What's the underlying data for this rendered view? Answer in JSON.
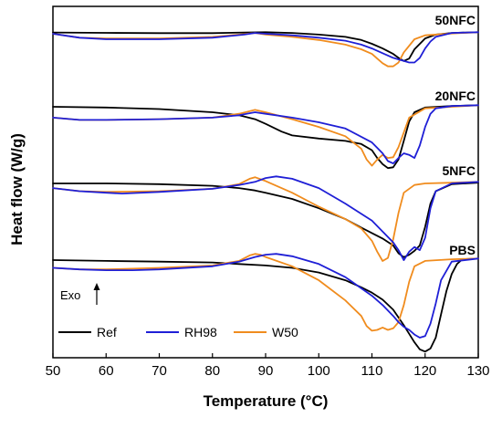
{
  "chart_data": {
    "type": "line",
    "xlabel": "Temperature (°C)",
    "ylabel": "Heat flow (W/g)",
    "xlim": [
      50,
      130
    ],
    "x_ticks": [
      50,
      60,
      70,
      80,
      90,
      100,
      110,
      120,
      130
    ],
    "y_ticks_shown": false,
    "annotation": "Exo",
    "legend": {
      "placement": "bottom-left",
      "entries": [
        {
          "name": "Ref",
          "color": "#000000"
        },
        {
          "name": "RH98",
          "color": "#1f1fd6"
        },
        {
          "name": "W50",
          "color": "#f08c1e"
        }
      ]
    },
    "group_note": "Vertically offset DSC curves; y values are relative heat-flow readings within each group",
    "groups": [
      {
        "label": "50NFC",
        "series": [
          {
            "name": "Ref",
            "x": [
              50,
              60,
              70,
              80,
              86,
              90,
              95,
              100,
              105,
              108,
              110,
              112,
              114,
              115,
              116,
              117,
              118,
              120,
              122,
              125,
              130
            ],
            "y": [
              0.08,
              0.06,
              0.04,
              0.04,
              0.08,
              0.1,
              0.05,
              -0.05,
              -0.2,
              -0.4,
              -0.65,
              -0.95,
              -1.3,
              -1.55,
              -1.75,
              -1.6,
              -1.0,
              -0.3,
              -0.05,
              0.05,
              0.1
            ]
          },
          {
            "name": "RH98",
            "x": [
              50,
              55,
              60,
              70,
              80,
              86,
              88,
              90,
              95,
              100,
              105,
              108,
              110,
              112,
              114,
              116,
              117,
              118,
              119,
              120,
              121,
              122,
              125,
              130
            ],
            "y": [
              0,
              -0.25,
              -0.35,
              -0.35,
              -0.25,
              -0.05,
              0.05,
              0.0,
              -0.1,
              -0.25,
              -0.45,
              -0.7,
              -0.95,
              -1.25,
              -1.55,
              -1.75,
              -1.85,
              -1.85,
              -1.55,
              -0.95,
              -0.5,
              -0.2,
              0.05,
              0.1
            ]
          },
          {
            "name": "W50",
            "x": [
              50,
              55,
              60,
              70,
              80,
              85,
              88,
              90,
              95,
              100,
              105,
              108,
              110,
              111,
              112,
              113,
              114,
              115,
              116,
              118,
              120,
              125,
              130
            ],
            "y": [
              0,
              -0.25,
              -0.3,
              -0.3,
              -0.2,
              -0.05,
              0.05,
              -0.05,
              -0.2,
              -0.4,
              -0.7,
              -1.0,
              -1.3,
              -1.6,
              -1.9,
              -2.1,
              -2.1,
              -1.85,
              -1.2,
              -0.35,
              -0.1,
              0.02,
              0.1
            ]
          }
        ]
      },
      {
        "label": "20NFC",
        "series": [
          {
            "name": "Ref",
            "x": [
              50,
              60,
              70,
              80,
              85,
              88,
              90,
              93,
              95,
              100,
              105,
              108,
              110,
              111,
              112,
              113,
              114,
              115,
              116,
              117,
              118,
              120,
              125,
              130
            ],
            "y": [
              0,
              -0.05,
              -0.15,
              -0.35,
              -0.55,
              -0.8,
              -1.1,
              -1.6,
              -1.85,
              -2.05,
              -2.2,
              -2.4,
              -2.8,
              -3.3,
              -3.7,
              -3.95,
              -3.9,
              -3.4,
              -2.2,
              -0.95,
              -0.35,
              -0.05,
              0.05,
              0.1
            ]
          },
          {
            "name": "RH98",
            "x": [
              50,
              55,
              60,
              70,
              80,
              85,
              88,
              90,
              95,
              100,
              105,
              110,
              112,
              113,
              114,
              115,
              116,
              117,
              118,
              119,
              120,
              121,
              122,
              125,
              130
            ],
            "y": [
              -0.7,
              -0.85,
              -0.85,
              -0.8,
              -0.7,
              -0.55,
              -0.35,
              -0.45,
              -0.7,
              -1.0,
              -1.4,
              -2.3,
              -3.0,
              -3.5,
              -3.65,
              -3.3,
              -3.0,
              -3.1,
              -3.3,
              -2.5,
              -1.3,
              -0.45,
              -0.1,
              0.05,
              0.1
            ]
          },
          {
            "name": "W50",
            "x": [
              50,
              55,
              60,
              70,
              80,
              85,
              88,
              90,
              95,
              100,
              105,
              108,
              109,
              110,
              111,
              112,
              113,
              114,
              115,
              117,
              120,
              125,
              130
            ],
            "y": [
              -0.7,
              -0.85,
              -0.85,
              -0.8,
              -0.7,
              -0.45,
              -0.2,
              -0.35,
              -0.8,
              -1.3,
              -1.9,
              -2.7,
              -3.4,
              -3.8,
              -3.4,
              -3.1,
              -3.3,
              -3.25,
              -2.6,
              -0.7,
              -0.1,
              0.0,
              0.1
            ]
          }
        ]
      },
      {
        "label": "5NFC",
        "series": [
          {
            "name": "Ref",
            "x": [
              50,
              60,
              70,
              80,
              85,
              88,
              90,
              95,
              100,
              105,
              108,
              110,
              112,
              114,
              115,
              116,
              117,
              118,
              119,
              120,
              121,
              122,
              125,
              130
            ],
            "y": [
              0,
              0,
              -0.05,
              -0.15,
              -0.3,
              -0.45,
              -0.6,
              -1.0,
              -1.6,
              -2.3,
              -2.85,
              -3.2,
              -3.55,
              -4.0,
              -4.5,
              -4.75,
              -4.6,
              -4.35,
              -4.0,
              -2.8,
              -1.3,
              -0.5,
              -0.05,
              0.05
            ]
          },
          {
            "name": "RH98",
            "x": [
              50,
              55,
              60,
              63,
              70,
              80,
              85,
              88,
              90,
              92,
              95,
              100,
              105,
              110,
              112,
              114,
              115,
              116,
              117,
              118,
              119,
              120,
              121,
              122,
              125,
              130
            ],
            "y": [
              -0.3,
              -0.5,
              -0.6,
              -0.65,
              -0.55,
              -0.35,
              -0.1,
              0.1,
              0.35,
              0.45,
              0.3,
              -0.3,
              -1.3,
              -2.4,
              -3.1,
              -3.8,
              -4.3,
              -4.95,
              -4.4,
              -4.1,
              -4.3,
              -3.5,
              -1.6,
              -0.5,
              0.0,
              0.1
            ]
          },
          {
            "name": "W50",
            "x": [
              50,
              55,
              60,
              70,
              80,
              85,
              87,
              88,
              90,
              95,
              100,
              105,
              108,
              110,
              111,
              112,
              113,
              114,
              115,
              116,
              118,
              120,
              125,
              130
            ],
            "y": [
              -0.3,
              -0.5,
              -0.55,
              -0.5,
              -0.35,
              -0.05,
              0.3,
              0.4,
              0.15,
              -0.6,
              -1.5,
              -2.3,
              -2.9,
              -3.7,
              -4.4,
              -5.0,
              -4.8,
              -3.6,
              -1.9,
              -0.6,
              -0.1,
              0.0,
              0.05,
              0.1
            ]
          }
        ]
      },
      {
        "label": "PBS",
        "series": [
          {
            "name": "Ref",
            "x": [
              50,
              60,
              70,
              80,
              85,
              90,
              95,
              100,
              105,
              108,
              110,
              112,
              114,
              115,
              116,
              117,
              118,
              119,
              120,
              121,
              122,
              123,
              124,
              125,
              126,
              127,
              130
            ],
            "y": [
              0,
              -0.05,
              -0.1,
              -0.15,
              -0.25,
              -0.35,
              -0.5,
              -0.8,
              -1.3,
              -1.75,
              -2.1,
              -2.55,
              -3.2,
              -3.7,
              -4.2,
              -4.75,
              -5.3,
              -5.75,
              -5.9,
              -5.7,
              -5.0,
              -3.5,
              -2.0,
              -0.9,
              -0.25,
              0.05,
              0.1
            ]
          },
          {
            "name": "RH98",
            "x": [
              50,
              55,
              60,
              65,
              70,
              80,
              85,
              88,
              90,
              92,
              95,
              100,
              105,
              110,
              112,
              114,
              115,
              116,
              117,
              118,
              119,
              120,
              121,
              122,
              123,
              125,
              130
            ],
            "y": [
              -0.5,
              -0.6,
              -0.65,
              -0.65,
              -0.6,
              -0.4,
              -0.1,
              0.2,
              0.35,
              0.4,
              0.25,
              -0.25,
              -1.1,
              -2.3,
              -2.9,
              -3.6,
              -4.0,
              -4.3,
              -4.5,
              -4.8,
              -5.0,
              -4.9,
              -4.1,
              -2.8,
              -1.3,
              -0.1,
              0.1
            ]
          },
          {
            "name": "W50",
            "x": [
              50,
              55,
              60,
              65,
              70,
              80,
              85,
              87,
              88,
              89,
              90,
              95,
              100,
              105,
              108,
              109,
              110,
              111,
              112,
              113,
              114,
              115,
              116,
              117,
              118,
              120,
              125,
              130
            ],
            "y": [
              -0.5,
              -0.6,
              -0.6,
              -0.55,
              -0.5,
              -0.35,
              -0.05,
              0.3,
              0.4,
              0.35,
              0.2,
              -0.4,
              -1.3,
              -2.6,
              -3.6,
              -4.25,
              -4.55,
              -4.5,
              -4.35,
              -4.5,
              -4.4,
              -4.0,
              -2.9,
              -1.4,
              -0.4,
              -0.05,
              0.05,
              0.1
            ]
          }
        ]
      }
    ]
  }
}
